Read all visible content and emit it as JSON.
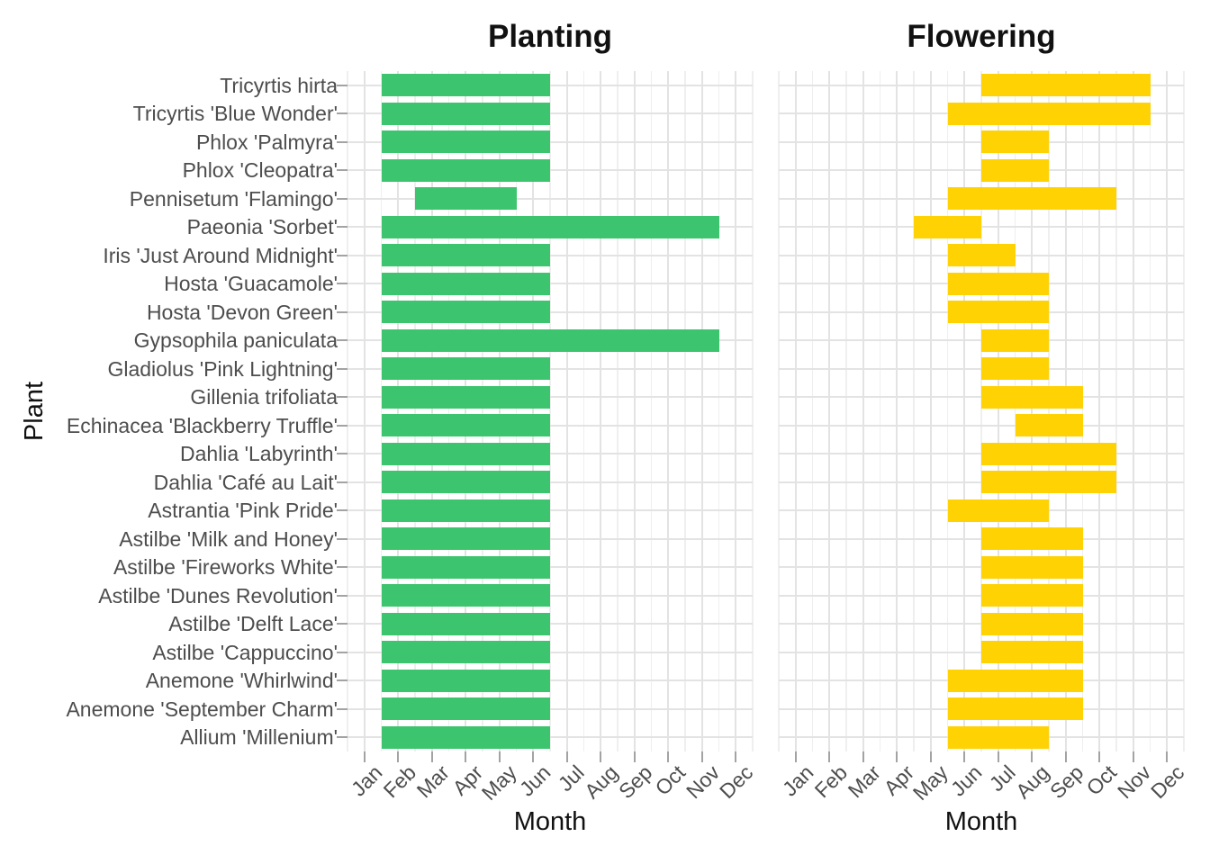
{
  "figure": {
    "background": "#ffffff",
    "y_axis_title": "Plant",
    "panels": [
      {
        "title": "Planting",
        "x_axis_title": "Month",
        "bar_color": "#3dc46e",
        "series_key": "planting"
      },
      {
        "title": "Flowering",
        "x_axis_title": "Month",
        "bar_color": "#ffd204",
        "series_key": "flowering"
      }
    ],
    "colors": {
      "planting_bar": "#3dc46e",
      "flowering_bar": "#ffd204",
      "grid_major": "#e3e3e3",
      "grid_minor": "#efefef",
      "axis_tick": "#a3a3a3",
      "tick_label": "#4d4d4d",
      "title_text": "#111111"
    }
  },
  "chart_data": {
    "type": "bar",
    "subtype": "gantt-month-range",
    "title": [
      "Planting",
      "Flowering"
    ],
    "xlabel": "Month",
    "ylabel": "Plant",
    "grid": true,
    "legend": false,
    "x_tick_labels": [
      "Jan",
      "Feb",
      "Mar",
      "Apr",
      "May",
      "Jun",
      "Jul",
      "Aug",
      "Sep",
      "Oct",
      "Nov",
      "Dec"
    ],
    "x_range_months": [
      1,
      12
    ],
    "categories_top_to_bottom": [
      "Tricyrtis hirta",
      "Tricyrtis 'Blue Wonder'",
      "Phlox 'Palmyra'",
      "Phlox 'Cleopatra'",
      "Pennisetum 'Flamingo'",
      "Paeonia 'Sorbet'",
      "Iris 'Just Around Midnight'",
      "Hosta 'Guacamole'",
      "Hosta 'Devon Green'",
      "Gypsophila paniculata",
      "Gladiolus 'Pink Lightning'",
      "Gillenia trifoliata",
      "Echinacea 'Blackberry Truffle'",
      "Dahlia 'Labyrinth'",
      "Dahlia 'Café au Lait'",
      "Astrantia 'Pink Pride'",
      "Astilbe 'Milk and Honey'",
      "Astilbe 'Fireworks White'",
      "Astilbe 'Dunes Revolution'",
      "Astilbe 'Delft Lace'",
      "Astilbe 'Cappuccino'",
      "Anemone 'Whirlwind'",
      "Anemone 'September Charm'",
      "Allium 'Millenium'"
    ],
    "plants": [
      {
        "name": "Tricyrtis hirta",
        "planting": [
          "Feb",
          "Jun"
        ],
        "flowering": [
          "Jul",
          "Nov"
        ]
      },
      {
        "name": "Tricyrtis 'Blue Wonder'",
        "planting": [
          "Feb",
          "Jun"
        ],
        "flowering": [
          "Jun",
          "Nov"
        ]
      },
      {
        "name": "Phlox 'Palmyra'",
        "planting": [
          "Feb",
          "Jun"
        ],
        "flowering": [
          "Jul",
          "Aug"
        ]
      },
      {
        "name": "Phlox 'Cleopatra'",
        "planting": [
          "Feb",
          "Jun"
        ],
        "flowering": [
          "Jul",
          "Aug"
        ]
      },
      {
        "name": "Pennisetum 'Flamingo'",
        "planting": [
          "Mar",
          "May"
        ],
        "flowering": [
          "Jun",
          "Oct"
        ]
      },
      {
        "name": "Paeonia 'Sorbet'",
        "planting": [
          "Feb",
          "Nov"
        ],
        "flowering": [
          "May",
          "Jun"
        ]
      },
      {
        "name": "Iris 'Just Around Midnight'",
        "planting": [
          "Feb",
          "Jun"
        ],
        "flowering": [
          "Jun",
          "Jul"
        ]
      },
      {
        "name": "Hosta 'Guacamole'",
        "planting": [
          "Feb",
          "Jun"
        ],
        "flowering": [
          "Jun",
          "Aug"
        ]
      },
      {
        "name": "Hosta 'Devon Green'",
        "planting": [
          "Feb",
          "Jun"
        ],
        "flowering": [
          "Jun",
          "Aug"
        ]
      },
      {
        "name": "Gypsophila paniculata",
        "planting": [
          "Feb",
          "Nov"
        ],
        "flowering": [
          "Jul",
          "Aug"
        ]
      },
      {
        "name": "Gladiolus 'Pink Lightning'",
        "planting": [
          "Feb",
          "Jun"
        ],
        "flowering": [
          "Jul",
          "Aug"
        ]
      },
      {
        "name": "Gillenia trifoliata",
        "planting": [
          "Feb",
          "Jun"
        ],
        "flowering": [
          "Jul",
          "Sep"
        ]
      },
      {
        "name": "Echinacea 'Blackberry Truffle'",
        "planting": [
          "Feb",
          "Jun"
        ],
        "flowering": [
          "Aug",
          "Sep"
        ]
      },
      {
        "name": "Dahlia 'Labyrinth'",
        "planting": [
          "Feb",
          "Jun"
        ],
        "flowering": [
          "Jul",
          "Oct"
        ]
      },
      {
        "name": "Dahlia 'Café au Lait'",
        "planting": [
          "Feb",
          "Jun"
        ],
        "flowering": [
          "Jul",
          "Oct"
        ]
      },
      {
        "name": "Astrantia 'Pink Pride'",
        "planting": [
          "Feb",
          "Jun"
        ],
        "flowering": [
          "Jun",
          "Aug"
        ]
      },
      {
        "name": "Astilbe 'Milk and Honey'",
        "planting": [
          "Feb",
          "Jun"
        ],
        "flowering": [
          "Jul",
          "Sep"
        ]
      },
      {
        "name": "Astilbe 'Fireworks White'",
        "planting": [
          "Feb",
          "Jun"
        ],
        "flowering": [
          "Jul",
          "Sep"
        ]
      },
      {
        "name": "Astilbe 'Dunes Revolution'",
        "planting": [
          "Feb",
          "Jun"
        ],
        "flowering": [
          "Jul",
          "Sep"
        ]
      },
      {
        "name": "Astilbe 'Delft Lace'",
        "planting": [
          "Feb",
          "Jun"
        ],
        "flowering": [
          "Jul",
          "Sep"
        ]
      },
      {
        "name": "Astilbe 'Cappuccino'",
        "planting": [
          "Feb",
          "Jun"
        ],
        "flowering": [
          "Jul",
          "Sep"
        ]
      },
      {
        "name": "Anemone 'Whirlwind'",
        "planting": [
          "Feb",
          "Jun"
        ],
        "flowering": [
          "Jun",
          "Sep"
        ]
      },
      {
        "name": "Anemone 'September Charm'",
        "planting": [
          "Feb",
          "Jun"
        ],
        "flowering": [
          "Jun",
          "Sep"
        ]
      },
      {
        "name": "Allium 'Millenium'",
        "planting": [
          "Feb",
          "Jun"
        ],
        "flowering": [
          "Jun",
          "Aug"
        ]
      }
    ]
  }
}
